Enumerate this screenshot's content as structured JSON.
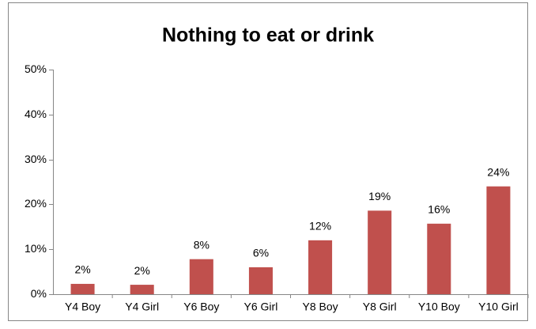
{
  "chart_data": {
    "type": "bar",
    "title": "Nothing to eat or drink",
    "categories": [
      "Y4 Boy",
      "Y4 Girl",
      "Y6 Boy",
      "Y6 Girl",
      "Y8 Boy",
      "Y8 Girl",
      "Y10 Boy",
      "Y10 Girl"
    ],
    "values": [
      2.3,
      2.1,
      7.8,
      6.0,
      12.0,
      18.6,
      15.7,
      24.0
    ],
    "value_labels": [
      "2%",
      "2%",
      "8%",
      "6%",
      "12%",
      "19%",
      "16%",
      "24%"
    ],
    "color": "#c0504d",
    "ylim": [
      0,
      50
    ],
    "yticks": [
      {
        "value": 0,
        "label": "0%"
      },
      {
        "value": 10,
        "label": "10%"
      },
      {
        "value": 20,
        "label": "20%"
      },
      {
        "value": 30,
        "label": "30%"
      },
      {
        "value": 40,
        "label": "40%"
      },
      {
        "value": 50,
        "label": "50%"
      }
    ],
    "grid": false
  }
}
